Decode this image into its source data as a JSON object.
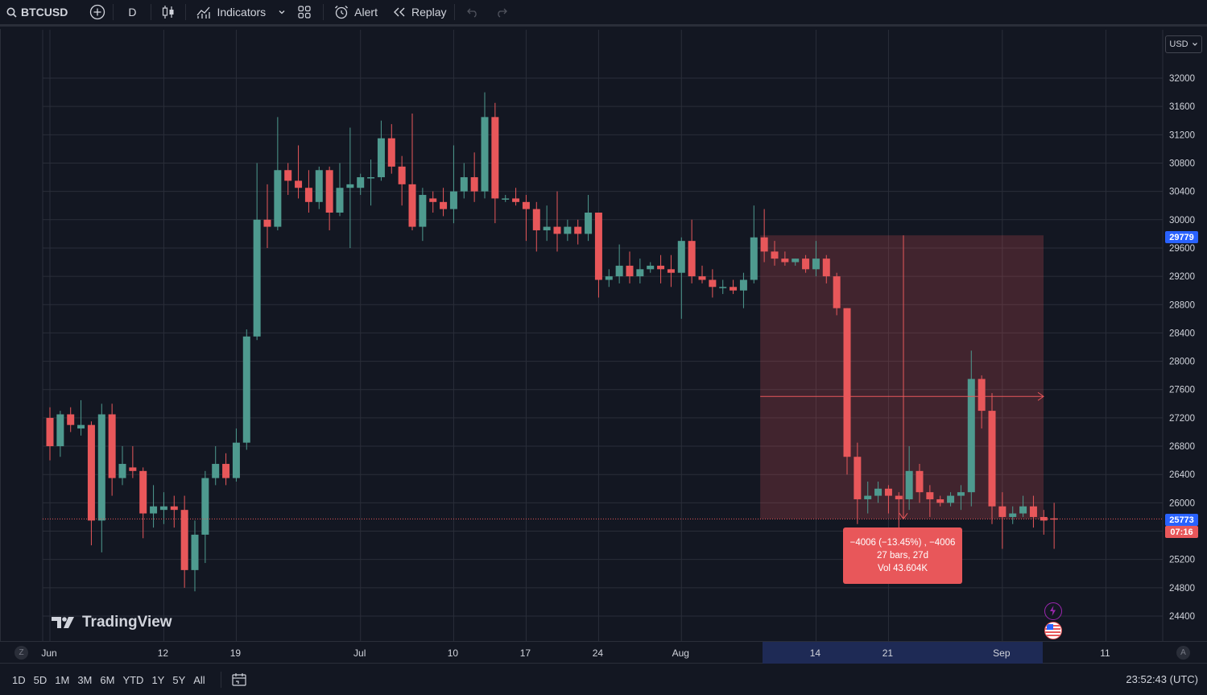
{
  "toolbar": {
    "symbol": "BTCUSD",
    "interval": "D",
    "indicators_label": "Indicators",
    "alert_label": "Alert",
    "replay_label": "Replay"
  },
  "currency": "USD",
  "price_axis": {
    "ticks": [
      "32000",
      "31600",
      "31200",
      "30800",
      "30400",
      "30000",
      "29600",
      "29200",
      "28800",
      "28400",
      "28000",
      "27600",
      "27200",
      "26800",
      "26400",
      "26000",
      "25600",
      "25200",
      "24800",
      "24400"
    ],
    "marker_high": "29779",
    "marker_last": "25773",
    "countdown": "07:16"
  },
  "time_axis": {
    "labels": [
      "Jun",
      "12",
      "19",
      "Jul",
      "10",
      "17",
      "24",
      "Aug",
      "14",
      "21",
      "Sep",
      "11"
    ]
  },
  "measure": {
    "line1": "−4006 (−13.45%) , −4006",
    "line2": "27 bars, 27d",
    "line3": "Vol 43.604K"
  },
  "logo_text": "TradingView",
  "ranges": [
    "1D",
    "5D",
    "1M",
    "3M",
    "6M",
    "YTD",
    "1Y",
    "5Y",
    "All"
  ],
  "clock": "23:52:43 (UTC)",
  "colors": {
    "up": "#4e9a8f",
    "down": "#e8575a",
    "bg": "#131722",
    "grid": "#2a2e39",
    "axis_text": "#d1d4dc"
  },
  "chart_data": {
    "type": "candlestick",
    "symbol": "BTCUSD",
    "interval": "1D",
    "ylim": [
      24200,
      32300
    ],
    "candles": [
      {
        "date": "2023-06-01",
        "o": 27200,
        "h": 27350,
        "l": 26600,
        "c": 26800
      },
      {
        "date": "2023-06-02",
        "o": 26800,
        "h": 27300,
        "l": 26650,
        "c": 27250
      },
      {
        "date": "2023-06-03",
        "o": 27250,
        "h": 27350,
        "l": 27000,
        "c": 27100
      },
      {
        "date": "2023-06-04",
        "o": 27050,
        "h": 27450,
        "l": 26950,
        "c": 27100
      },
      {
        "date": "2023-06-05",
        "o": 27100,
        "h": 27150,
        "l": 25400,
        "c": 25750
      },
      {
        "date": "2023-06-06",
        "o": 25750,
        "h": 27400,
        "l": 25300,
        "c": 27250
      },
      {
        "date": "2023-06-07",
        "o": 27250,
        "h": 27400,
        "l": 26100,
        "c": 26350
      },
      {
        "date": "2023-06-08",
        "o": 26350,
        "h": 26800,
        "l": 26250,
        "c": 26550
      },
      {
        "date": "2023-06-09",
        "o": 26500,
        "h": 26800,
        "l": 26350,
        "c": 26450
      },
      {
        "date": "2023-06-10",
        "o": 26450,
        "h": 26500,
        "l": 25500,
        "c": 25850
      },
      {
        "date": "2023-06-11",
        "o": 25850,
        "h": 26250,
        "l": 25650,
        "c": 25950
      },
      {
        "date": "2023-06-12",
        "o": 25900,
        "h": 26150,
        "l": 25700,
        "c": 25950
      },
      {
        "date": "2023-06-13",
        "o": 25950,
        "h": 26100,
        "l": 25650,
        "c": 25900
      },
      {
        "date": "2023-06-14",
        "o": 25900,
        "h": 26100,
        "l": 24800,
        "c": 25050
      },
      {
        "date": "2023-06-15",
        "o": 25050,
        "h": 25750,
        "l": 24750,
        "c": 25550
      },
      {
        "date": "2023-06-16",
        "o": 25550,
        "h": 26450,
        "l": 25150,
        "c": 26350
      },
      {
        "date": "2023-06-17",
        "o": 26350,
        "h": 26800,
        "l": 26250,
        "c": 26550
      },
      {
        "date": "2023-06-18",
        "o": 26550,
        "h": 26700,
        "l": 26250,
        "c": 26350
      },
      {
        "date": "2023-06-19",
        "o": 26350,
        "h": 27050,
        "l": 26300,
        "c": 26850
      },
      {
        "date": "2023-06-20",
        "o": 26850,
        "h": 28450,
        "l": 26750,
        "c": 28350
      },
      {
        "date": "2023-06-21",
        "o": 28350,
        "h": 30800,
        "l": 28300,
        "c": 30000
      },
      {
        "date": "2023-06-22",
        "o": 30000,
        "h": 30500,
        "l": 29600,
        "c": 29900
      },
      {
        "date": "2023-06-23",
        "o": 29900,
        "h": 31450,
        "l": 29850,
        "c": 30700
      },
      {
        "date": "2023-06-24",
        "o": 30700,
        "h": 30800,
        "l": 30350,
        "c": 30550
      },
      {
        "date": "2023-06-25",
        "o": 30550,
        "h": 31050,
        "l": 30300,
        "c": 30450
      },
      {
        "date": "2023-06-26",
        "o": 30450,
        "h": 30700,
        "l": 30100,
        "c": 30250
      },
      {
        "date": "2023-06-27",
        "o": 30250,
        "h": 30750,
        "l": 30150,
        "c": 30700
      },
      {
        "date": "2023-06-28",
        "o": 30700,
        "h": 30750,
        "l": 29850,
        "c": 30100
      },
      {
        "date": "2023-06-29",
        "o": 30100,
        "h": 30800,
        "l": 30050,
        "c": 30450
      },
      {
        "date": "2023-06-30",
        "o": 30450,
        "h": 31300,
        "l": 29600,
        "c": 30500
      },
      {
        "date": "2023-07-01",
        "o": 30450,
        "h": 30650,
        "l": 30350,
        "c": 30600
      },
      {
        "date": "2023-07-02",
        "o": 30600,
        "h": 30850,
        "l": 30200,
        "c": 30600
      },
      {
        "date": "2023-07-03",
        "o": 30600,
        "h": 31400,
        "l": 30550,
        "c": 31150
      },
      {
        "date": "2023-07-04",
        "o": 31150,
        "h": 31350,
        "l": 30650,
        "c": 30750
      },
      {
        "date": "2023-07-05",
        "o": 30750,
        "h": 30900,
        "l": 30200,
        "c": 30500
      },
      {
        "date": "2023-07-06",
        "o": 30500,
        "h": 31500,
        "l": 29850,
        "c": 29900
      },
      {
        "date": "2023-07-07",
        "o": 29900,
        "h": 30450,
        "l": 29700,
        "c": 30350
      },
      {
        "date": "2023-07-08",
        "o": 30300,
        "h": 30400,
        "l": 30100,
        "c": 30250
      },
      {
        "date": "2023-07-09",
        "o": 30250,
        "h": 30450,
        "l": 30050,
        "c": 30150
      },
      {
        "date": "2023-07-10",
        "o": 30150,
        "h": 31050,
        "l": 29950,
        "c": 30400
      },
      {
        "date": "2023-07-11",
        "o": 30400,
        "h": 30800,
        "l": 30300,
        "c": 30600
      },
      {
        "date": "2023-07-12",
        "o": 30600,
        "h": 30950,
        "l": 30250,
        "c": 30400
      },
      {
        "date": "2023-07-13",
        "o": 30400,
        "h": 31800,
        "l": 30300,
        "c": 31450
      },
      {
        "date": "2023-07-14",
        "o": 31450,
        "h": 31650,
        "l": 29950,
        "c": 30300
      },
      {
        "date": "2023-07-15",
        "o": 30300,
        "h": 30350,
        "l": 30250,
        "c": 30300
      },
      {
        "date": "2023-07-16",
        "o": 30300,
        "h": 30450,
        "l": 30200,
        "c": 30250
      },
      {
        "date": "2023-07-17",
        "o": 30250,
        "h": 30350,
        "l": 29700,
        "c": 30150
      },
      {
        "date": "2023-07-18",
        "o": 30150,
        "h": 30250,
        "l": 29550,
        "c": 29850
      },
      {
        "date": "2023-07-19",
        "o": 29850,
        "h": 30200,
        "l": 29700,
        "c": 29900
      },
      {
        "date": "2023-07-20",
        "o": 29900,
        "h": 30400,
        "l": 29550,
        "c": 29800
      },
      {
        "date": "2023-07-21",
        "o": 29800,
        "h": 30000,
        "l": 29700,
        "c": 29900
      },
      {
        "date": "2023-07-22",
        "o": 29900,
        "h": 30000,
        "l": 29650,
        "c": 29800
      },
      {
        "date": "2023-07-23",
        "o": 29800,
        "h": 30350,
        "l": 29700,
        "c": 30100
      },
      {
        "date": "2023-07-24",
        "o": 30100,
        "h": 30100,
        "l": 28900,
        "c": 29150
      },
      {
        "date": "2023-07-25",
        "o": 29150,
        "h": 29300,
        "l": 29050,
        "c": 29200
      },
      {
        "date": "2023-07-26",
        "o": 29200,
        "h": 29650,
        "l": 29100,
        "c": 29350
      },
      {
        "date": "2023-07-27",
        "o": 29350,
        "h": 29550,
        "l": 29100,
        "c": 29200
      },
      {
        "date": "2023-07-28",
        "o": 29200,
        "h": 29450,
        "l": 29100,
        "c": 29300
      },
      {
        "date": "2023-07-29",
        "o": 29300,
        "h": 29400,
        "l": 29250,
        "c": 29350
      },
      {
        "date": "2023-07-30",
        "o": 29350,
        "h": 29500,
        "l": 29100,
        "c": 29300
      },
      {
        "date": "2023-07-31",
        "o": 29300,
        "h": 29500,
        "l": 29050,
        "c": 29250
      },
      {
        "date": "2023-08-01",
        "o": 29250,
        "h": 29750,
        "l": 28600,
        "c": 29700
      },
      {
        "date": "2023-08-02",
        "o": 29700,
        "h": 30000,
        "l": 29100,
        "c": 29200
      },
      {
        "date": "2023-08-03",
        "o": 29200,
        "h": 29350,
        "l": 29100,
        "c": 29150
      },
      {
        "date": "2023-08-04",
        "o": 29150,
        "h": 29300,
        "l": 28900,
        "c": 29050
      },
      {
        "date": "2023-08-05",
        "o": 29050,
        "h": 29150,
        "l": 28950,
        "c": 29050
      },
      {
        "date": "2023-08-06",
        "o": 29050,
        "h": 29150,
        "l": 28950,
        "c": 29000
      },
      {
        "date": "2023-08-07",
        "o": 29000,
        "h": 29250,
        "l": 28750,
        "c": 29150
      },
      {
        "date": "2023-08-08",
        "o": 29150,
        "h": 30200,
        "l": 29100,
        "c": 29750
      },
      {
        "date": "2023-08-09",
        "o": 29750,
        "h": 30150,
        "l": 29400,
        "c": 29550
      },
      {
        "date": "2023-08-10",
        "o": 29550,
        "h": 29700,
        "l": 29350,
        "c": 29450
      },
      {
        "date": "2023-08-11",
        "o": 29450,
        "h": 29550,
        "l": 29350,
        "c": 29400
      },
      {
        "date": "2023-08-12",
        "o": 29400,
        "h": 29450,
        "l": 29350,
        "c": 29450
      },
      {
        "date": "2023-08-13",
        "o": 29450,
        "h": 29500,
        "l": 29250,
        "c": 29300
      },
      {
        "date": "2023-08-14",
        "o": 29300,
        "h": 29700,
        "l": 29200,
        "c": 29450
      },
      {
        "date": "2023-08-15",
        "o": 29450,
        "h": 29500,
        "l": 29100,
        "c": 29200
      },
      {
        "date": "2023-08-16",
        "o": 29200,
        "h": 29250,
        "l": 28650,
        "c": 28750
      },
      {
        "date": "2023-08-17",
        "o": 28750,
        "h": 28750,
        "l": 26400,
        "c": 26650
      },
      {
        "date": "2023-08-18",
        "o": 26650,
        "h": 26850,
        "l": 25700,
        "c": 26050
      },
      {
        "date": "2023-08-19",
        "o": 26050,
        "h": 26300,
        "l": 25850,
        "c": 26100
      },
      {
        "date": "2023-08-20",
        "o": 26100,
        "h": 26300,
        "l": 26000,
        "c": 26200
      },
      {
        "date": "2023-08-21",
        "o": 26200,
        "h": 26250,
        "l": 25850,
        "c": 26100
      },
      {
        "date": "2023-08-22",
        "o": 26100,
        "h": 26150,
        "l": 25650,
        "c": 26050
      },
      {
        "date": "2023-08-23",
        "o": 26050,
        "h": 26800,
        "l": 25900,
        "c": 26450
      },
      {
        "date": "2023-08-24",
        "o": 26450,
        "h": 26550,
        "l": 26000,
        "c": 26150
      },
      {
        "date": "2023-08-25",
        "o": 26150,
        "h": 26250,
        "l": 25800,
        "c": 26050
      },
      {
        "date": "2023-08-26",
        "o": 26050,
        "h": 26100,
        "l": 25950,
        "c": 26000
      },
      {
        "date": "2023-08-27",
        "o": 26000,
        "h": 26150,
        "l": 25950,
        "c": 26100
      },
      {
        "date": "2023-08-28",
        "o": 26100,
        "h": 26250,
        "l": 25900,
        "c": 26150
      },
      {
        "date": "2023-08-29",
        "o": 26150,
        "h": 28150,
        "l": 25950,
        "c": 27750
      },
      {
        "date": "2023-08-30",
        "o": 27750,
        "h": 27800,
        "l": 27050,
        "c": 27300
      },
      {
        "date": "2023-08-31",
        "o": 27300,
        "h": 27550,
        "l": 25700,
        "c": 25950
      },
      {
        "date": "2023-09-01",
        "o": 25950,
        "h": 26150,
        "l": 25350,
        "c": 25800
      },
      {
        "date": "2023-09-02",
        "o": 25800,
        "h": 25950,
        "l": 25700,
        "c": 25850
      },
      {
        "date": "2023-09-03",
        "o": 25850,
        "h": 26100,
        "l": 25800,
        "c": 25950
      },
      {
        "date": "2023-09-04",
        "o": 25950,
        "h": 26100,
        "l": 25650,
        "c": 25800
      },
      {
        "date": "2023-09-05",
        "o": 25800,
        "h": 25900,
        "l": 25550,
        "c": 25750
      },
      {
        "date": "2023-09-06",
        "o": 25780,
        "h": 26000,
        "l": 25350,
        "c": 25773
      }
    ]
  }
}
